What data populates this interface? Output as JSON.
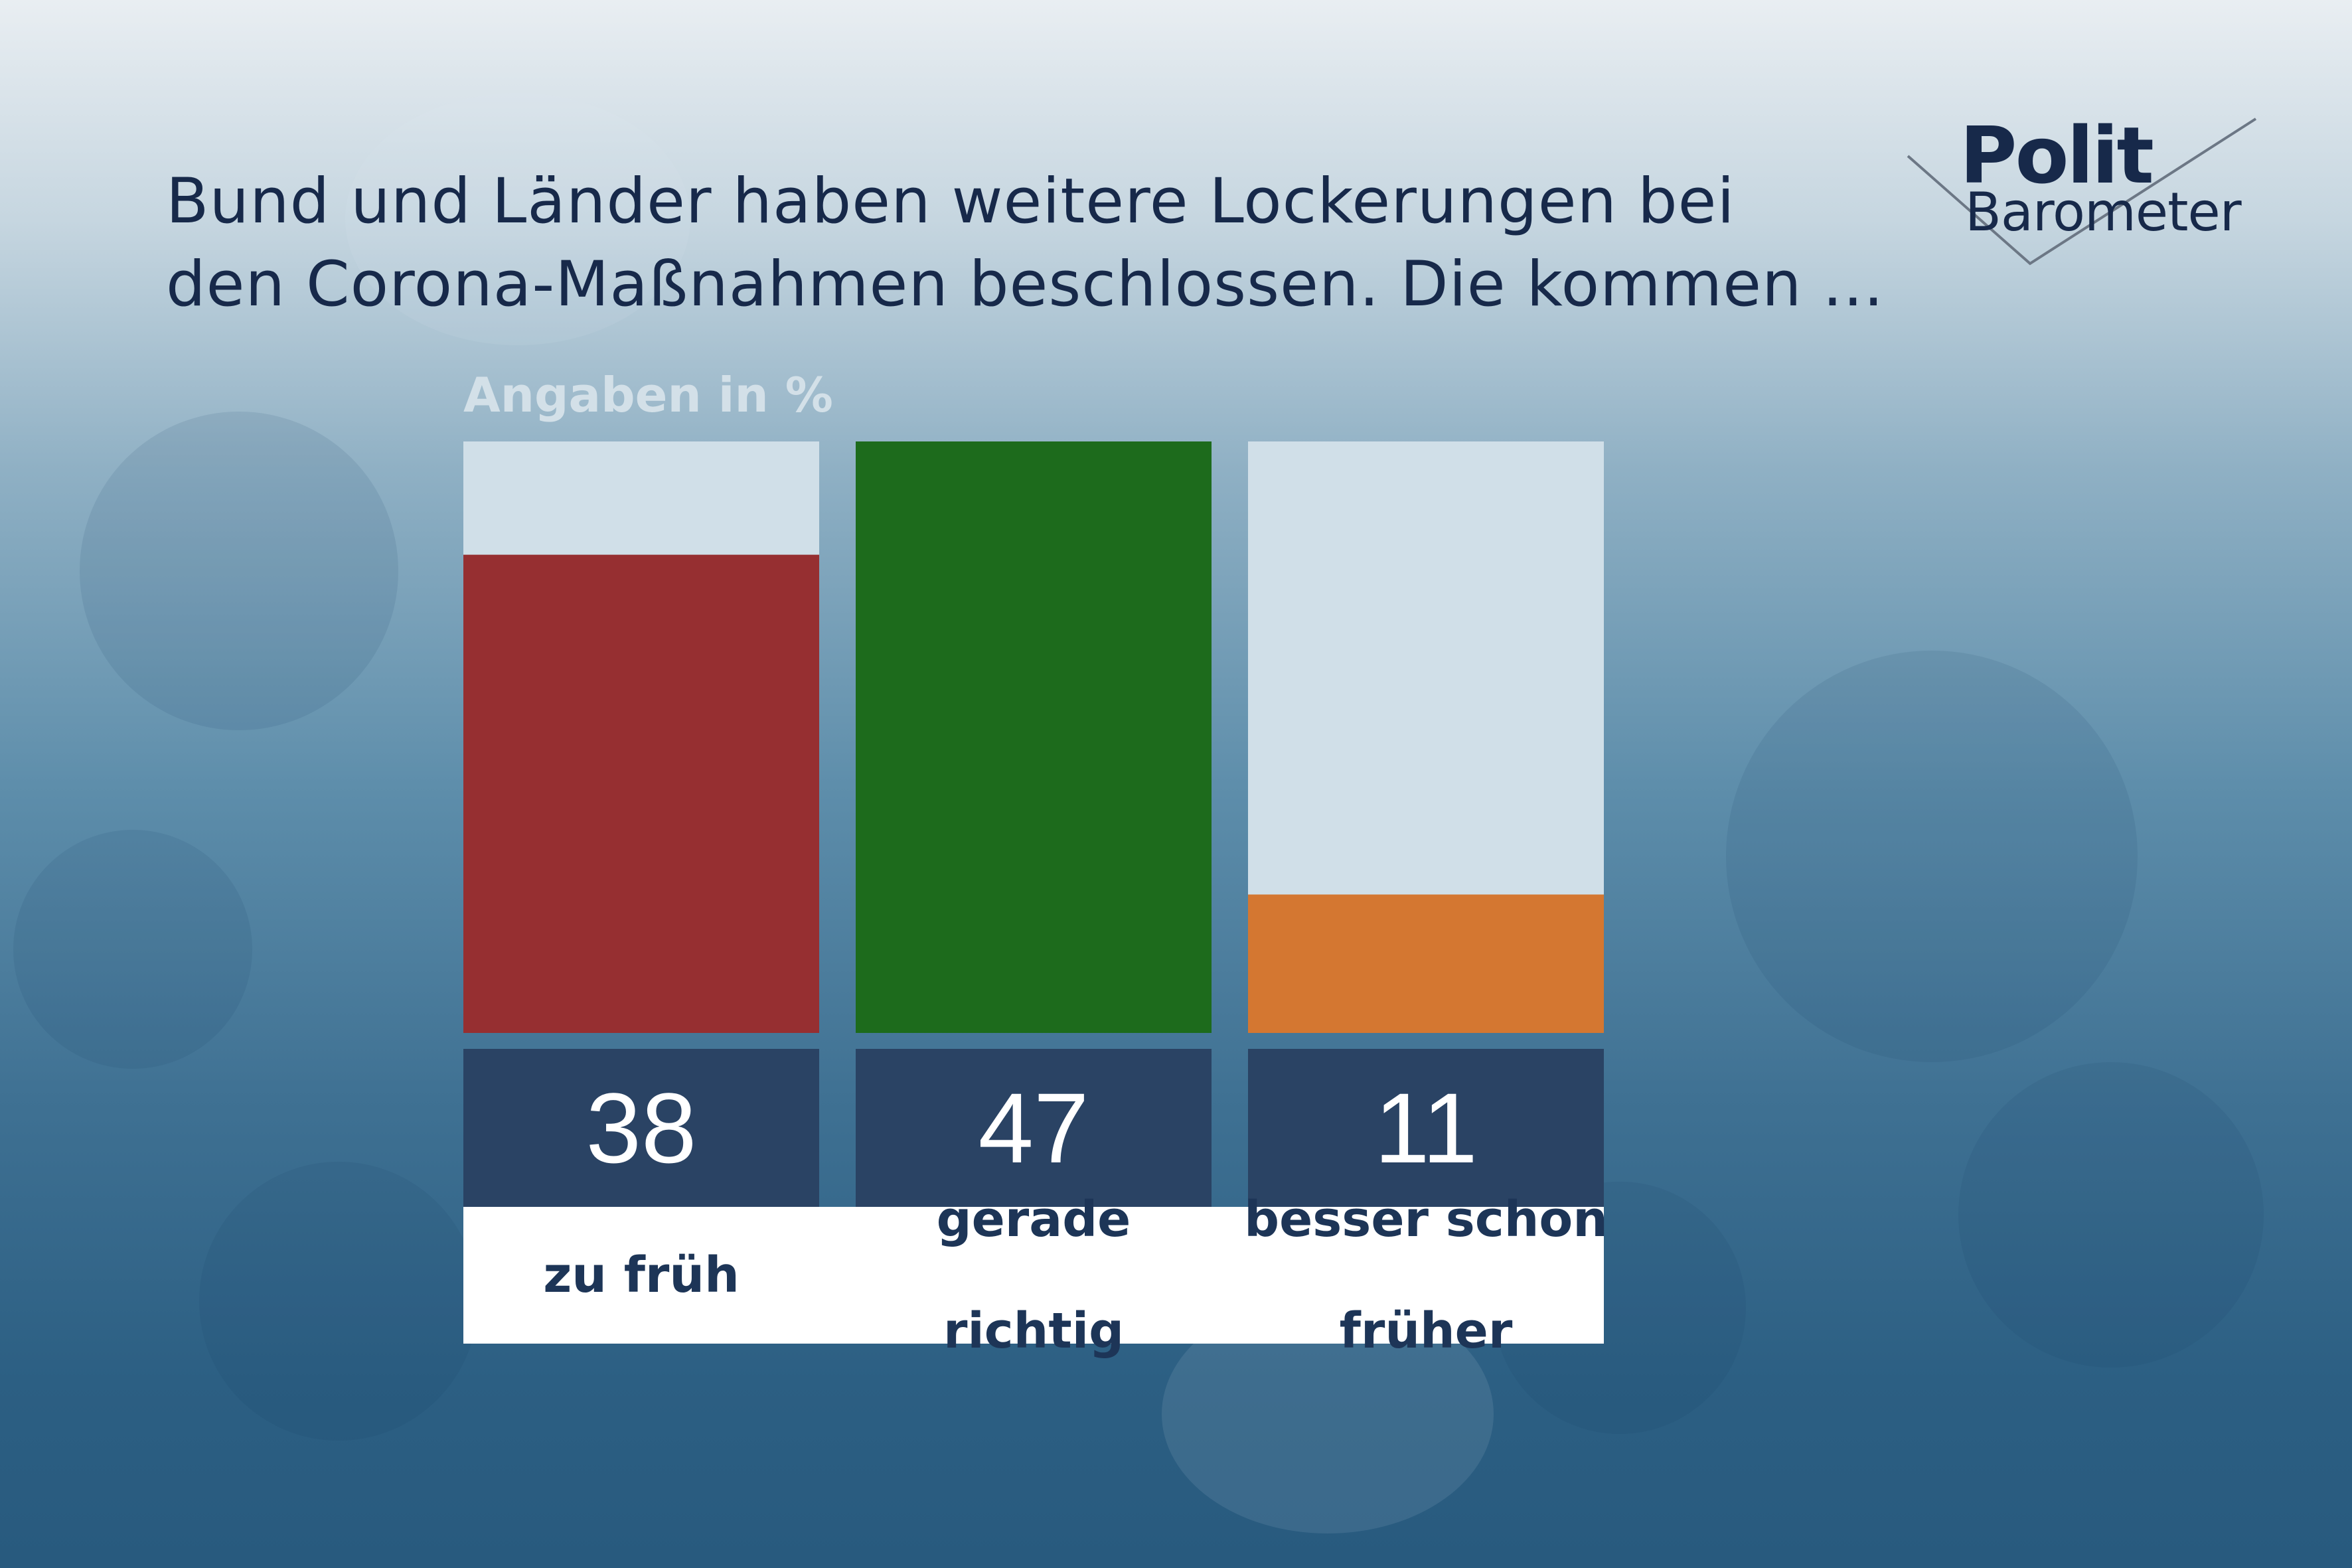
{
  "title_lines": [
    "Bund und Länder haben weitere Lockerungen bei",
    "den Corona-Maßnahmen beschlossen. Die kommen ..."
  ],
  "logo": {
    "top": "Polit",
    "bottom": "Barometer"
  },
  "chart_data": {
    "type": "bar",
    "unit_label": "Angaben in %",
    "categories": [
      "zu früh",
      "gerade richtig",
      "besser schon früher"
    ],
    "category_lines": [
      [
        "zu früh"
      ],
      [
        "gerade",
        "richtig"
      ],
      [
        "besser schon",
        "früher"
      ]
    ],
    "values": [
      38,
      47,
      11
    ],
    "value_labels": [
      "38",
      "47",
      "11"
    ],
    "colors": [
      "#962f31",
      "#1d6b1c",
      "#d47731"
    ],
    "track_color": "#d0dfe8",
    "ylim": [
      0,
      47
    ]
  }
}
